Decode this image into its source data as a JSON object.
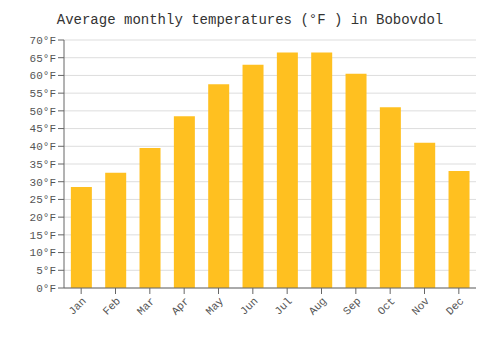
{
  "chart_data": {
    "type": "bar",
    "title": "Average monthly temperatures (°F ) in Bobovdol",
    "categories": [
      "Jan",
      "Feb",
      "Mar",
      "Apr",
      "May",
      "Jun",
      "Jul",
      "Aug",
      "Sep",
      "Oct",
      "Nov",
      "Dec"
    ],
    "values": [
      28.5,
      32.5,
      39.5,
      48.5,
      57.5,
      63.0,
      66.5,
      66.5,
      60.5,
      51.0,
      41.0,
      33.0
    ],
    "color": "#FFC020",
    "ylim": [
      0,
      70
    ],
    "yticks": [
      {
        "value": 0,
        "label": "0°F"
      },
      {
        "value": 5,
        "label": "5°F"
      },
      {
        "value": 10,
        "label": "10°F"
      },
      {
        "value": 15,
        "label": "15°F"
      },
      {
        "value": 20,
        "label": "20°F"
      },
      {
        "value": 25,
        "label": "25°F"
      },
      {
        "value": 30,
        "label": "30°F"
      },
      {
        "value": 35,
        "label": "35°F"
      },
      {
        "value": 40,
        "label": "40°F"
      },
      {
        "value": 45,
        "label": "45°F"
      },
      {
        "value": 50,
        "label": "50°F"
      },
      {
        "value": 55,
        "label": "55°F"
      },
      {
        "value": 60,
        "label": "60°F"
      },
      {
        "value": 65,
        "label": "65°F"
      },
      {
        "value": 70,
        "label": "70°F"
      }
    ],
    "grid": true
  }
}
